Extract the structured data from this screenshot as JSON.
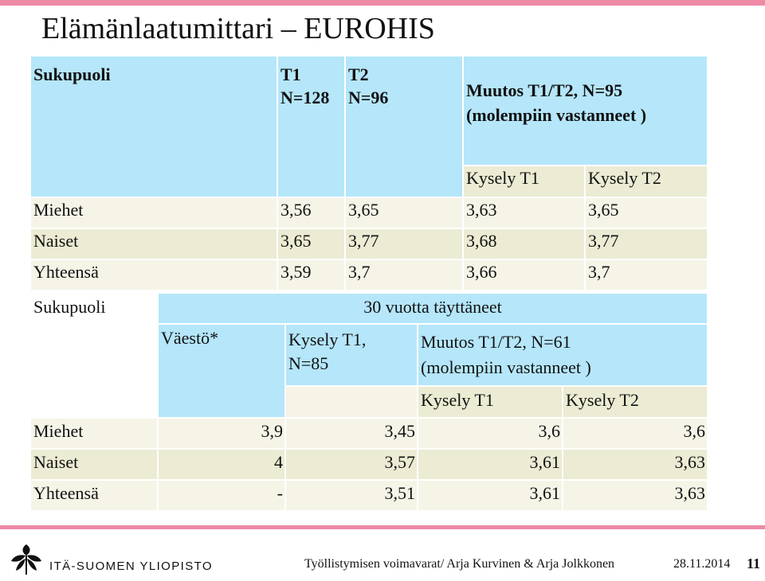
{
  "title": "Elämänlaatumittari – EUROHIS",
  "table1": {
    "h_gender": "Sukupuoli",
    "h_t1_line1": "T1",
    "h_t1_line2": "N=128",
    "h_t2_line1": "T2",
    "h_t2_line2": "N=96",
    "h_change_line1": "Muutos T1/T2, N=95",
    "h_change_line2": "(molempiin vastanneet )",
    "sub_kysely_t1": "Kysely T1",
    "sub_kysely_t2": "Kysely T2",
    "rows": [
      {
        "label": "Miehet",
        "t1": "3,56",
        "t2": "3,65",
        "k1": "3,63",
        "k2": "3,65"
      },
      {
        "label": "Naiset",
        "t1": "3,65",
        "t2": "3,77",
        "k1": "3,68",
        "k2": "3,77"
      },
      {
        "label": "Yhteensä",
        "t1": "3,59",
        "t2": "3,7",
        "k1": "3,66",
        "k2": "3,7"
      }
    ]
  },
  "table2": {
    "h_gender": "Sukupuoli",
    "h_group": "30 vuotta täyttäneet",
    "h_vaesto": "Väestö*",
    "h_kysely_line1": "Kysely T1,",
    "h_kysely_line2": "N=85",
    "h_change_line1": "Muutos T1/T2, N=61",
    "h_change_line2": "(molempiin vastanneet )",
    "sub_kysely_t1": "Kysely T1",
    "sub_kysely_t2": "Kysely T2",
    "rows": [
      {
        "label": "Miehet",
        "vaesto": "3,9",
        "kt1": "3,45",
        "k1": "3,6",
        "k2": "3,6"
      },
      {
        "label": "Naiset",
        "vaesto": "4",
        "kt1": "3,57",
        "k1": "3,61",
        "k2": "3,63"
      },
      {
        "label": "Yhteensä",
        "vaesto": "-",
        "kt1": "3,51",
        "k1": "3,61",
        "k2": "3,63"
      }
    ]
  },
  "footer": {
    "university": "ITÄ-SUOMEN YLIOPISTO",
    "text": "Työllistymisen voimavarat/  Arja Kurvinen & Arja Jolkkonen",
    "date": "28.11.2014",
    "page": "11"
  },
  "colors": {
    "accent_bar": "#ee8aa6",
    "header_fill": "#b5e6fa",
    "row_dark": "#ecebd3",
    "row_light": "#f5f4e7"
  }
}
